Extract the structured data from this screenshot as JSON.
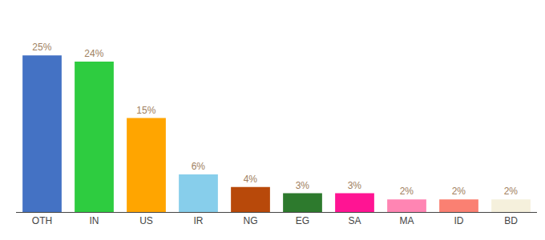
{
  "chart_data": {
    "type": "bar",
    "categories": [
      "OTH",
      "IN",
      "US",
      "IR",
      "NG",
      "EG",
      "SA",
      "MA",
      "ID",
      "BD"
    ],
    "values": [
      25,
      24,
      15,
      6,
      4,
      3,
      3,
      2,
      2,
      2
    ],
    "value_labels": [
      "25%",
      "24%",
      "15%",
      "6%",
      "4%",
      "3%",
      "3%",
      "2%",
      "2%",
      "2%"
    ],
    "colors": [
      "#4472C4",
      "#2ECC40",
      "#FFA500",
      "#87CEEB",
      "#B8490A",
      "#2D7A2D",
      "#FF1493",
      "#FF85B3",
      "#FA8072",
      "#F5F0DC"
    ],
    "ylim": [
      0,
      30
    ],
    "data_labels": true,
    "tick_labels": "x",
    "grid": false
  }
}
